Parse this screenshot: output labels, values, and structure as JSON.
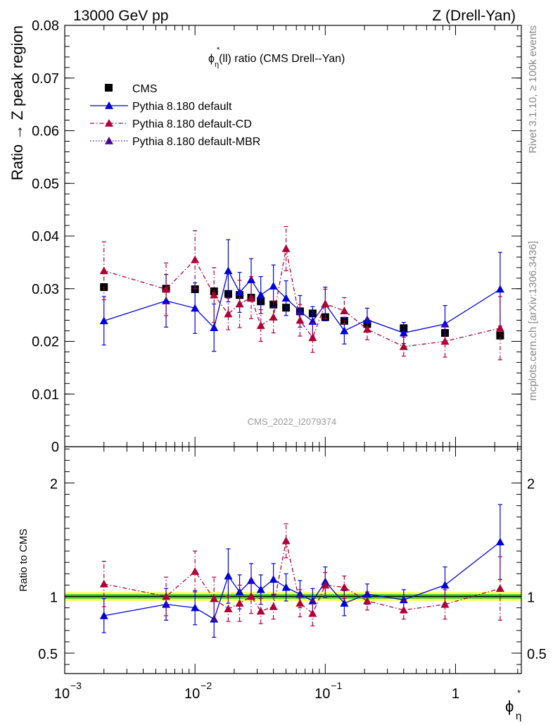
{
  "header": {
    "left": "13000 GeV pp",
    "right": "Z (Drell-Yan)"
  },
  "side_labels": {
    "rivet": "Rivet 3.1.10, ≥ 100k events",
    "mcplots": "mcplots.cern.ch [arXiv:1306.3436]"
  },
  "watermark": "CMS_2022_I2079374",
  "chart_data": [
    {
      "type": "scatter",
      "title_main": "ϕ",
      "title_sup": "*",
      "title_sub": "η",
      "title_rest": "(ll) ratio (CMS Drell--Yan)",
      "ylabel": "Ratio → Z peak region",
      "xscale": "log",
      "xlim": [
        0.001,
        3.2
      ],
      "ylim": [
        0,
        0.08
      ],
      "yticks": [
        {
          "v": 0,
          "label": "0"
        },
        {
          "v": 0.01,
          "label": "0.01"
        },
        {
          "v": 0.02,
          "label": "0.02"
        },
        {
          "v": 0.03,
          "label": "0.03"
        },
        {
          "v": 0.04,
          "label": "0.04"
        },
        {
          "v": 0.05,
          "label": "0.05"
        },
        {
          "v": 0.06,
          "label": "0.06"
        },
        {
          "v": 0.07,
          "label": "0.07"
        },
        {
          "v": 0.08,
          "label": "0.08"
        }
      ],
      "legend_position": "top-left",
      "x": [
        0.002,
        0.006,
        0.01,
        0.014,
        0.018,
        0.022,
        0.027,
        0.032,
        0.04,
        0.05,
        0.064,
        0.08,
        0.1,
        0.14,
        0.21,
        0.4,
        0.83,
        2.2
      ],
      "series": [
        {
          "name": "CMS",
          "style": "data",
          "color": "#000000",
          "values": [
            0.0303,
            0.03,
            0.0299,
            0.0295,
            0.029,
            0.0288,
            0.0283,
            0.0276,
            0.027,
            0.0264,
            0.0257,
            0.0253,
            0.0246,
            0.0239,
            0.0233,
            0.0225,
            0.0216,
            0.0211
          ],
          "errors": [
            0.0004,
            0.0004,
            0.0004,
            0.0004,
            0.0004,
            0.0004,
            0.0004,
            0.0004,
            0.0004,
            0.0004,
            0.0004,
            0.0004,
            0.0004,
            0.0004,
            0.0004,
            0.0004,
            0.0004,
            0.0004
          ]
        },
        {
          "name": "Pythia 8.180 default",
          "style": "solid",
          "color": "#0000dd",
          "values": [
            0.0239,
            0.0277,
            0.0263,
            0.0226,
            0.0334,
            0.0293,
            0.0317,
            0.0288,
            0.0305,
            0.0282,
            0.0257,
            0.0238,
            0.0271,
            0.022,
            0.0241,
            0.0216,
            0.0233,
            0.0299
          ],
          "errors": [
            0.0046,
            0.005,
            0.0048,
            0.0045,
            0.0059,
            0.0038,
            0.004,
            0.0035,
            0.004,
            0.0033,
            0.003,
            0.0028,
            0.0032,
            0.0025,
            0.0022,
            0.002,
            0.0035,
            0.007
          ]
        },
        {
          "name": "Pythia 8.180 default-CD",
          "style": "dashdot",
          "color": "#b00035",
          "values": [
            0.0334,
            0.0299,
            0.0355,
            0.0288,
            0.0252,
            0.0271,
            0.0283,
            0.023,
            0.0246,
            0.0376,
            0.024,
            0.0207,
            0.0271,
            0.0258,
            0.0223,
            0.019,
            0.02,
            0.0225
          ],
          "errors": [
            0.0055,
            0.005,
            0.0055,
            0.0052,
            0.003,
            0.0045,
            0.004,
            0.003,
            0.003,
            0.0042,
            0.003,
            0.0028,
            0.0028,
            0.0025,
            0.002,
            0.0018,
            0.003,
            0.006
          ]
        },
        {
          "name": "Pythia 8.180 default-MBR",
          "style": "dotted",
          "color": "#4b0092",
          "values": [],
          "errors": []
        }
      ]
    },
    {
      "type": "scatter",
      "ylabel": "Ratio to CMS",
      "xlabel_main": "ϕ",
      "xlabel_sup": "*",
      "xlabel_sub": "η",
      "xscale": "log",
      "xlim": [
        0.001,
        3.2
      ],
      "ylim": [
        0.32,
        2.32
      ],
      "yticks": [
        {
          "v": 0.5,
          "label": "0.5"
        },
        {
          "v": 1,
          "label": "1"
        },
        {
          "v": 2,
          "label": "2"
        }
      ],
      "xticks": [
        {
          "v": 0.001,
          "base": "10",
          "exp": "−3"
        },
        {
          "v": 0.01,
          "base": "10",
          "exp": "−2"
        },
        {
          "v": 0.1,
          "base": "10",
          "exp": "−1"
        },
        {
          "v": 1,
          "base": "1",
          "exp": ""
        }
      ],
      "band": {
        "inner": 0.02,
        "outer": 0.04,
        "inner_color": "#33cc33",
        "outer_color": "#ffff66"
      },
      "x": [
        0.002,
        0.006,
        0.01,
        0.014,
        0.018,
        0.022,
        0.027,
        0.032,
        0.04,
        0.05,
        0.064,
        0.08,
        0.1,
        0.14,
        0.21,
        0.4,
        0.83,
        2.2
      ],
      "series": [
        {
          "name": "Pythia 8.180 default",
          "style": "solid",
          "color": "#0000dd",
          "values": [
            0.83,
            0.93,
            0.9,
            0.8,
            1.18,
            1.04,
            1.14,
            1.06,
            1.15,
            1.08,
            1.02,
            0.96,
            1.13,
            0.94,
            1.02,
            0.97,
            1.1,
            1.48
          ],
          "errors": [
            0.15,
            0.14,
            0.15,
            0.16,
            0.24,
            0.15,
            0.15,
            0.13,
            0.14,
            0.12,
            0.12,
            0.11,
            0.13,
            0.11,
            0.09,
            0.09,
            0.16,
            0.33
          ]
        },
        {
          "name": "Pythia 8.180 default-CD",
          "style": "dashdot",
          "color": "#b00035",
          "values": [
            1.11,
            1.0,
            1.22,
            0.98,
            0.89,
            0.94,
            1.0,
            0.87,
            0.91,
            1.49,
            0.94,
            0.85,
            1.1,
            1.08,
            0.96,
            0.88,
            0.93,
            1.07
          ],
          "errors": [
            0.2,
            0.17,
            0.18,
            0.19,
            0.11,
            0.16,
            0.15,
            0.11,
            0.11,
            0.15,
            0.12,
            0.11,
            0.11,
            0.1,
            0.08,
            0.08,
            0.13,
            0.28
          ]
        }
      ]
    }
  ]
}
